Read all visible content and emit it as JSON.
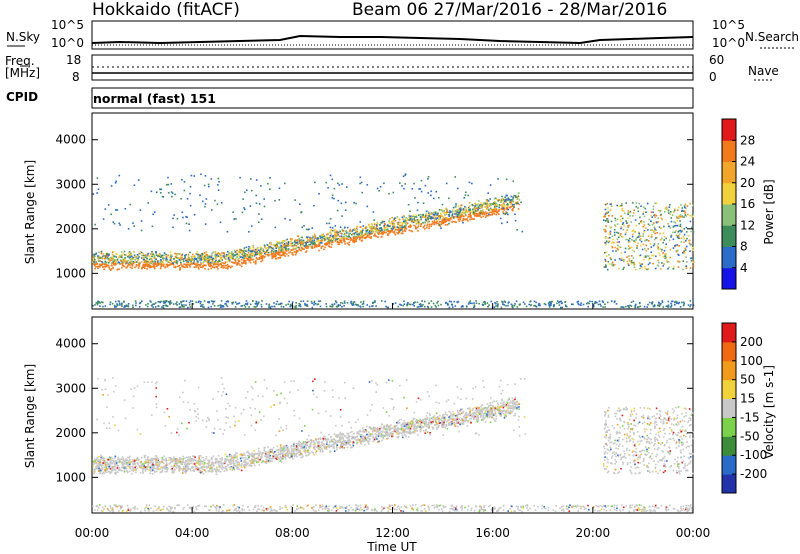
{
  "header": {
    "station": "Hokkaido (fitACF)",
    "beam_date": "Beam 06  27/Mar/2016 - 28/Mar/2016"
  },
  "top_panels": {
    "nsky_label": "N.Sky",
    "nsky_ticks": [
      "10^5",
      "10^0"
    ],
    "nsearch_label": "N.Search",
    "nsearch_ticks": [
      "10^5",
      "10^0"
    ],
    "freq_label_1": "Freq.",
    "freq_label_2": "[MHz]",
    "freq_ticks": [
      "18",
      "8"
    ],
    "nave_label": "Nave",
    "nave_ticks": [
      "60",
      "0"
    ],
    "cpid_label": "CPID",
    "cpid_value": "normal (fast) 151"
  },
  "chart_data": [
    {
      "type": "heatmap",
      "name": "power",
      "xlabel": "",
      "ylabel": "Slant Range [km]",
      "y_ticks": [
        "1000",
        "2000",
        "3000",
        "4000"
      ],
      "ylim": [
        200,
        4600
      ],
      "colorbar_label": "Power [dB]",
      "colorbar_ticks": [
        "4",
        "8",
        "12",
        "16",
        "20",
        "24",
        "28"
      ],
      "colors": [
        "#1414e6",
        "#2c6bc8",
        "#3d8d5c",
        "#8ac07a",
        "#f2d23a",
        "#f2a52b",
        "#f07a1c",
        "#e01a1a"
      ]
    },
    {
      "type": "heatmap",
      "name": "velocity",
      "xlabel": "Time UT",
      "ylabel": "Slant Range [km]",
      "y_ticks": [
        "1000",
        "2000",
        "3000",
        "4000"
      ],
      "ylim": [
        200,
        4600
      ],
      "colorbar_label": "Velocity [m s-1]",
      "colorbar_ticks": [
        "200",
        "100",
        "50",
        "15",
        "-15",
        "-50",
        "-100",
        "-200"
      ],
      "colors": [
        "#2233aa",
        "#2b6bc8",
        "#3c8c3c",
        "#7bd24a",
        "#c8c8c8",
        "#f2d23a",
        "#f29a1c",
        "#ef6a12",
        "#e01a1a"
      ]
    }
  ],
  "x_axis": {
    "ticks": [
      "00:00",
      "04:00",
      "08:00",
      "12:00",
      "16:00",
      "20:00",
      "00:00"
    ],
    "label": "Time UT"
  }
}
